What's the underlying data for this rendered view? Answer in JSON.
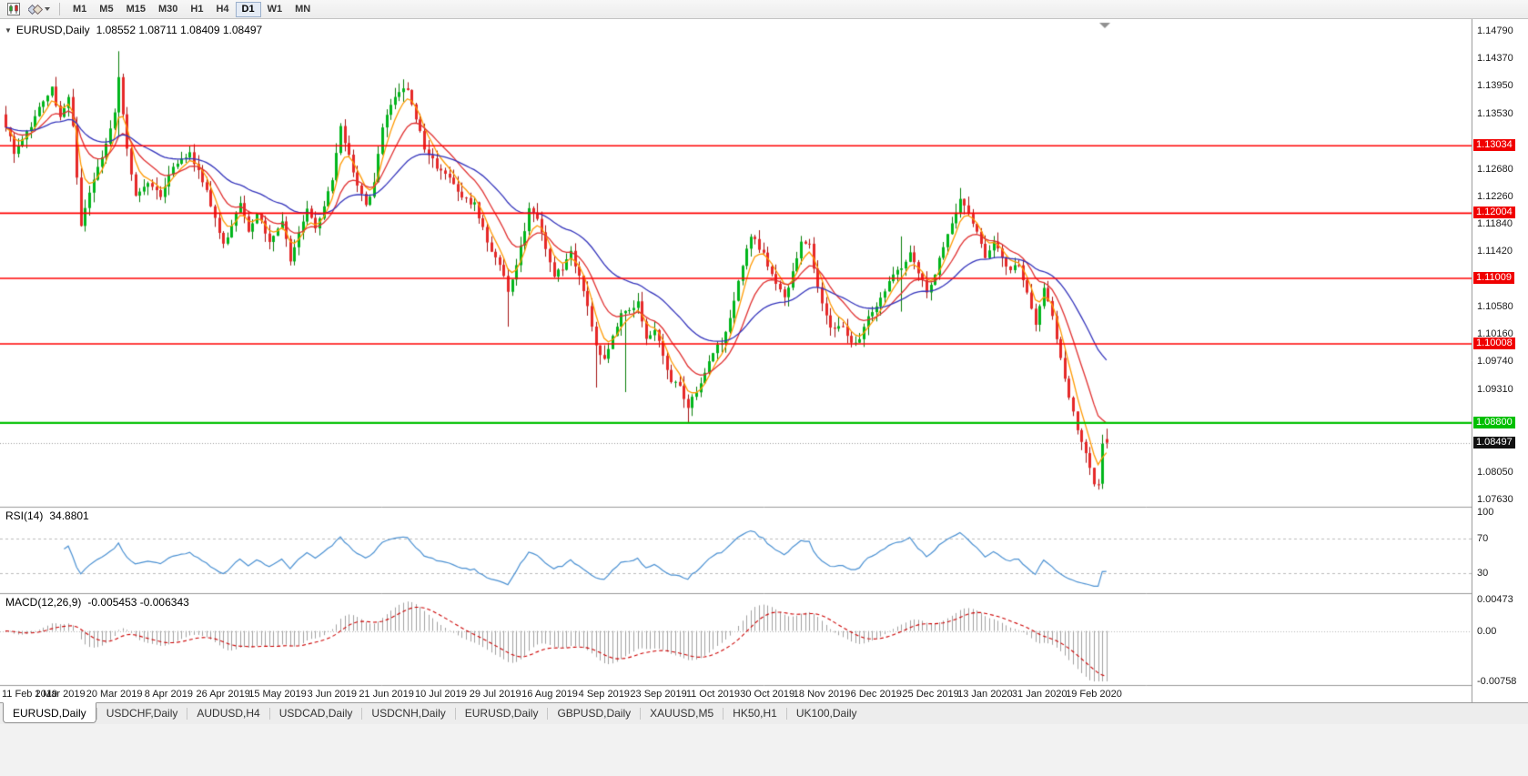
{
  "toolbar": {
    "timeframes": [
      "M1",
      "M5",
      "M15",
      "M30",
      "H1",
      "H4",
      "D1",
      "W1",
      "MN"
    ],
    "active_timeframe": "D1",
    "icons": [
      "candlestick-chart-icon",
      "objects-list-icon"
    ]
  },
  "chart": {
    "collapse_glyph": "▼",
    "symbol_period": "EURUSD,Daily",
    "quote": "1.08552 1.08711 1.08409 1.08497"
  },
  "rsi_panel": {
    "label": "RSI(14)",
    "value": "34.8801"
  },
  "macd_panel": {
    "label": "MACD(12,26,9)",
    "value": "-0.005453 -0.006343"
  },
  "tabs": {
    "active_index": 0,
    "items": [
      "EURUSD,Daily",
      "USDCHF,Daily",
      "AUDUSD,H4",
      "USDCAD,Daily",
      "USDCNH,Daily",
      "EURUSD,Daily",
      "GBPUSD,Daily",
      "XAUUSD,M5",
      "HK50,H1",
      "UK100,Daily"
    ]
  },
  "chart_data": {
    "type": "candlestick",
    "symbol": "EURUSD",
    "timeframe": "Daily",
    "quote": {
      "open": 1.08552,
      "high": 1.08711,
      "low": 1.08409,
      "close": 1.08497
    },
    "y_axis": {
      "top": 1.1479,
      "bottom": 1.0763,
      "ticks": [
        "1.14790",
        "1.14370",
        "1.13950",
        "1.13530",
        "1.12680",
        "1.12260",
        "1.11840",
        "1.11420",
        "1.10580",
        "1.10160",
        "1.09740",
        "1.09310",
        "1.08050",
        "1.07630"
      ]
    },
    "x_axis": {
      "labels": [
        "11 Feb 2019",
        "1 Mar 2019",
        "20 Mar 2019",
        "8 Apr 2019",
        "26 Apr 2019",
        "15 May 2019",
        "3 Jun 2019",
        "21 Jun 2019",
        "10 Jul 2019",
        "29 Jul 2019",
        "16 Aug 2019",
        "4 Sep 2019",
        "23 Sep 2019",
        "11 Oct 2019",
        "30 Oct 2019",
        "18 Nov 2019",
        "6 Dec 2019",
        "25 Dec 2019",
        "13 Jan 2020",
        "31 Jan 2020",
        "19 Feb 2020"
      ],
      "candles_per_label": 13
    },
    "h_lines": [
      {
        "price": 1.13034,
        "label": "1.13034",
        "color": "red"
      },
      {
        "price": 1.12004,
        "label": "1.12004",
        "color": "red"
      },
      {
        "price": 1.11009,
        "label": "1.11009",
        "color": "red"
      },
      {
        "price": 1.10008,
        "label": "1.10008",
        "color": "red"
      },
      {
        "price": 1.088,
        "label": "1.08800",
        "color": "green"
      }
    ],
    "current_price": {
      "value": 1.08497,
      "label": "1.08497"
    },
    "series": {
      "count": 264,
      "noise": 0.0009,
      "wick": 0.0015,
      "waypoints": [
        [
          0,
          1.1335
        ],
        [
          2,
          1.1295
        ],
        [
          4,
          1.131
        ],
        [
          6,
          1.1335
        ],
        [
          8,
          1.136
        ],
        [
          11,
          1.139
        ],
        [
          13,
          1.1345
        ],
        [
          15,
          1.138
        ],
        [
          16,
          1.133
        ],
        [
          18,
          1.1185
        ],
        [
          20,
          1.123
        ],
        [
          23,
          1.129
        ],
        [
          26,
          1.135
        ],
        [
          27,
          1.141
        ],
        [
          29,
          1.13
        ],
        [
          31,
          1.1225
        ],
        [
          34,
          1.1245
        ],
        [
          37,
          1.1225
        ],
        [
          40,
          1.127
        ],
        [
          44,
          1.1295
        ],
        [
          47,
          1.125
        ],
        [
          50,
          1.1195
        ],
        [
          52,
          1.115
        ],
        [
          54,
          1.1185
        ],
        [
          56,
          1.1215
        ],
        [
          58,
          1.117
        ],
        [
          60,
          1.12
        ],
        [
          63,
          1.116
        ],
        [
          66,
          1.1185
        ],
        [
          68,
          1.113
        ],
        [
          70,
          1.117
        ],
        [
          72,
          1.1205
        ],
        [
          74,
          1.1175
        ],
        [
          76,
          1.1215
        ],
        [
          78,
          1.125
        ],
        [
          80,
          1.133
        ],
        [
          83,
          1.1265
        ],
        [
          86,
          1.121
        ],
        [
          88,
          1.125
        ],
        [
          90,
          1.133
        ],
        [
          93,
          1.138
        ],
        [
          96,
          1.139
        ],
        [
          98,
          1.1345
        ],
        [
          100,
          1.13
        ],
        [
          103,
          1.127
        ],
        [
          106,
          1.1255
        ],
        [
          109,
          1.1225
        ],
        [
          112,
          1.1215
        ],
        [
          115,
          1.1155
        ],
        [
          118,
          1.1125
        ],
        [
          120,
          1.108
        ],
        [
          122,
          1.112
        ],
        [
          125,
          1.1205
        ],
        [
          127,
          1.119
        ],
        [
          129,
          1.1145
        ],
        [
          131,
          1.1105
        ],
        [
          133,
          1.1115
        ],
        [
          135,
          1.114
        ],
        [
          137,
          1.1105
        ],
        [
          139,
          1.106
        ],
        [
          141,
          1.0995
        ],
        [
          143,
          1.0975
        ],
        [
          145,
          1.101
        ],
        [
          147,
          1.1045
        ],
        [
          149,
          1.105
        ],
        [
          151,
          1.1065
        ],
        [
          153,
          1.1005
        ],
        [
          155,
          1.1025
        ],
        [
          157,
          1.0985
        ],
        [
          159,
          1.0945
        ],
        [
          161,
          1.0935
        ],
        [
          163,
          1.0905
        ],
        [
          165,
          1.093
        ],
        [
          167,
          1.0955
        ],
        [
          169,
          1.0985
        ],
        [
          171,
          1.1005
        ],
        [
          173,
          1.104
        ],
        [
          176,
          1.112
        ],
        [
          178,
          1.1165
        ],
        [
          181,
          1.114
        ],
        [
          184,
          1.109
        ],
        [
          186,
          1.107
        ],
        [
          188,
          1.111
        ],
        [
          190,
          1.116
        ],
        [
          192,
          1.115
        ],
        [
          194,
          1.109
        ],
        [
          196,
          1.104
        ],
        [
          198,
          1.102
        ],
        [
          200,
          1.103
        ],
        [
          202,
          1.1
        ],
        [
          204,
          1.101
        ],
        [
          206,
          1.104
        ],
        [
          208,
          1.1055
        ],
        [
          210,
          1.108
        ],
        [
          212,
          1.111
        ],
        [
          214,
          1.112
        ],
        [
          216,
          1.114
        ],
        [
          218,
          1.111
        ],
        [
          220,
          1.108
        ],
        [
          222,
          1.111
        ],
        [
          224,
          1.115
        ],
        [
          226,
          1.1185
        ],
        [
          228,
          1.122
        ],
        [
          230,
          1.12
        ],
        [
          232,
          1.117
        ],
        [
          234,
          1.1135
        ],
        [
          236,
          1.116
        ],
        [
          238,
          1.113
        ],
        [
          240,
          1.111
        ],
        [
          242,
          1.1125
        ],
        [
          244,
          1.108
        ],
        [
          246,
          1.103
        ],
        [
          248,
          1.1085
        ],
        [
          250,
          1.104
        ],
        [
          252,
          1.0975
        ],
        [
          254,
          1.092
        ],
        [
          256,
          1.0872
        ],
        [
          258,
          1.0838
        ],
        [
          260,
          1.079
        ],
        [
          261,
          1.0785
        ],
        [
          262,
          1.0848
        ],
        [
          263,
          1.085
        ]
      ],
      "overrides": [
        {
          "i": 27,
          "h": 1.1448,
          "l": 1.1318
        },
        {
          "i": 120,
          "l": 1.1027
        },
        {
          "i": 141,
          "l": 1.0934
        },
        {
          "i": 148,
          "l": 1.0927
        },
        {
          "i": 163,
          "l": 1.0879
        },
        {
          "i": 214,
          "h": 1.1165,
          "l": 1.105
        },
        {
          "i": 228,
          "h": 1.1239
        },
        {
          "i": 261,
          "l": 1.0778
        },
        {
          "i": 262,
          "o": 1.0787,
          "h": 1.0862,
          "l": 1.0779,
          "c": 1.0848
        },
        {
          "i": 263,
          "o": 1.08552,
          "h": 1.08711,
          "l": 1.08409,
          "c": 1.08497
        }
      ]
    },
    "moving_averages": [
      {
        "period": 5,
        "type": "ema",
        "color": "#ff9900"
      },
      {
        "period": 13,
        "type": "ema",
        "color": "#e03030"
      },
      {
        "period": 34,
        "type": "ema",
        "color": "#3333bb"
      }
    ],
    "rsi": {
      "period": 14,
      "value": "34.8801",
      "levels": [
        70,
        30
      ],
      "color": "#4a90d2",
      "ticks": [
        {
          "label": "100",
          "v": 100
        },
        {
          "label": "70",
          "v": 70
        },
        {
          "label": "30",
          "v": 30
        }
      ]
    },
    "macd": {
      "fast": 12,
      "slow": 26,
      "signal": 9,
      "macd_value": "-0.005453",
      "signal_value": "-0.006343",
      "range": [
        -0.00758,
        0.00473
      ],
      "hist_color": "#a0a0a0",
      "signal_color": "#cc0000",
      "ticks": [
        {
          "label": "0.00473",
          "v": 0.00473
        },
        {
          "label": "0.00",
          "v": 0
        },
        {
          "label": "-0.00758",
          "v": -0.00758
        }
      ]
    },
    "colors": {
      "up": "#00b61b",
      "up_wick": "#067d06",
      "down": "#e62828",
      "down_wick": "#a31212",
      "hline_red": "#ff0000",
      "hline_green": "#00c000",
      "price_line": "#999999"
    }
  }
}
